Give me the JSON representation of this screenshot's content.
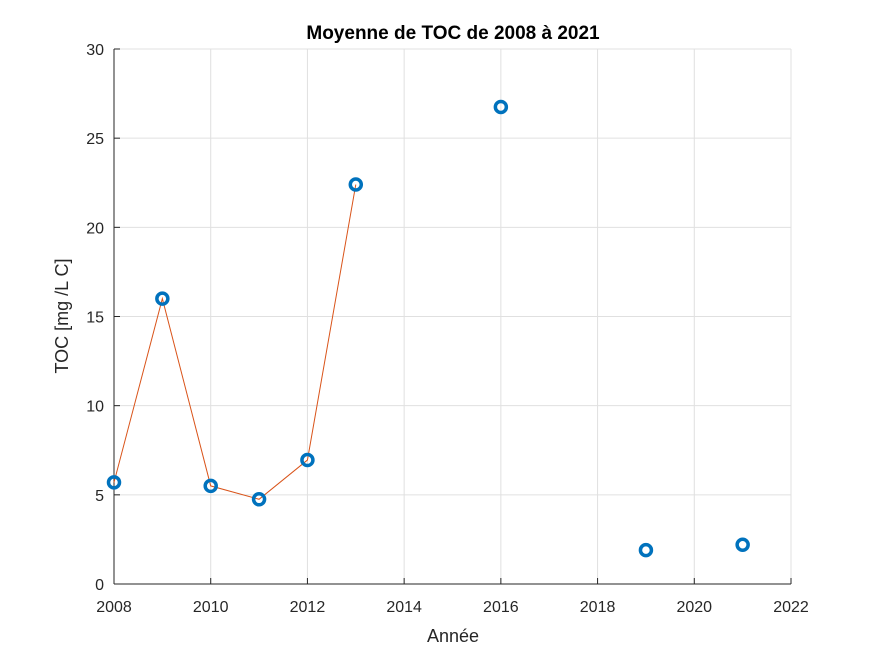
{
  "chart_data": {
    "type": "scatter",
    "title": "Moyenne de TOC de 2008 à 2021",
    "xlabel": "Année",
    "ylabel": "TOC [mg /L C]",
    "xlim": [
      2008,
      2022
    ],
    "ylim": [
      0,
      30
    ],
    "xticks": [
      "2008",
      "2010",
      "2012",
      "2014",
      "2016",
      "2018",
      "2020",
      "2022"
    ],
    "yticks": [
      "0",
      "5",
      "10",
      "15",
      "20",
      "25",
      "30"
    ],
    "grid": true,
    "series": [
      {
        "style": "markers",
        "color": "#0072BD",
        "x": [
          2008,
          2009,
          2010,
          2011,
          2012,
          2013,
          2016,
          2019,
          2021
        ],
        "y": [
          5.7,
          16.0,
          5.5,
          4.75,
          6.95,
          22.4,
          26.75,
          1.9,
          2.2
        ]
      },
      {
        "style": "line",
        "color": "#D95319",
        "x": [
          2008,
          2009,
          2010,
          2011,
          2012,
          2013
        ],
        "y": [
          5.7,
          16.0,
          5.5,
          4.75,
          6.95,
          22.4
        ]
      }
    ]
  }
}
